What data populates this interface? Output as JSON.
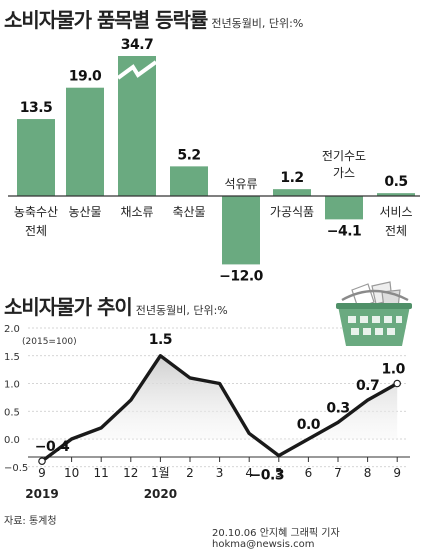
{
  "header": {
    "title": "소비자물가 품목별 등락률",
    "subtitle": "전년동월비, 단위:%"
  },
  "line_header": {
    "title": "소비자물가 추이",
    "subtitle": "전년동월비, 단위:%",
    "base_note": "(2015=100)"
  },
  "footer": {
    "source": "자료: 통계청",
    "credit": "20.10.06 안지혜 그래픽 기자 hokma@newsis.com"
  },
  "colors": {
    "bar": "#6aaa80",
    "line": "#1a1a1a",
    "fill_top": "#d6d6d6",
    "text": "#222222"
  },
  "icons": {
    "spike": "lightning-break-icon",
    "basket": "shopping-basket-icon"
  },
  "chart_data": [
    {
      "type": "bar",
      "categories": [
        "농축수산 전체",
        "농산물",
        "채소류",
        "축산물",
        "석유류",
        "가공식품",
        "전기수도 가스",
        "서비스 전체"
      ],
      "category_lines": [
        [
          "농축수산",
          "전체"
        ],
        [
          "농산물"
        ],
        [
          "채소류"
        ],
        [
          "축산물"
        ],
        [
          "석유류"
        ],
        [
          "가공식품"
        ],
        [
          "전기수도",
          "가스"
        ],
        [
          "서비스",
          "전체"
        ]
      ],
      "values": [
        13.5,
        19.0,
        34.7,
        5.2,
        -12.0,
        1.2,
        -4.1,
        0.5
      ],
      "value_labels": [
        "13.5",
        "19.0",
        "34.7",
        "5.2",
        "−12.0",
        "1.2",
        "−4.1",
        "0.5"
      ],
      "axis_break": "채소류",
      "title": "소비자물가 품목별 등락률"
    },
    {
      "type": "line",
      "x": [
        "9",
        "10",
        "11",
        "12",
        "1월",
        "2",
        "3",
        "4",
        "5",
        "6",
        "7",
        "8",
        "9"
      ],
      "years": [
        {
          "label": "2019",
          "at": "9"
        },
        {
          "label": "2020",
          "at": "1월"
        }
      ],
      "values": [
        -0.4,
        0.0,
        0.2,
        0.7,
        1.5,
        1.1,
        1.0,
        0.1,
        -0.3,
        0.0,
        0.3,
        0.7,
        1.0
      ],
      "labels": [
        {
          "x": "9",
          "text": "−0.4"
        },
        {
          "x": "1월",
          "text": "1.5"
        },
        {
          "x": "5",
          "text": "−0.3"
        },
        {
          "x": "6",
          "text": "0.0"
        },
        {
          "x": "7",
          "text": "0.3"
        },
        {
          "x": "8",
          "text": "0.7"
        },
        {
          "x": "9",
          "index": 12,
          "text": "1.0"
        }
      ],
      "yticks": [
        "2.0",
        "1.5",
        "1.0",
        "0.5",
        "0.0",
        "−0.5"
      ],
      "ylim": [
        -0.5,
        2.0
      ],
      "grid": true,
      "title": "소비자물가 추이"
    }
  ]
}
